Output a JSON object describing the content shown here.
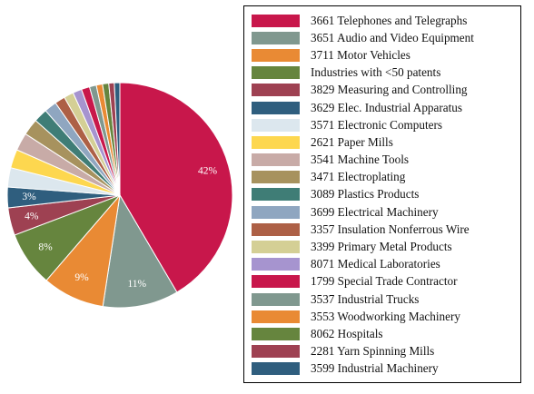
{
  "chart_data": {
    "type": "pie",
    "slices": [
      {
        "label": "3661 Telephones and Telegraphs",
        "value": 42,
        "color": "#c8174b",
        "value_label": "42%"
      },
      {
        "label": "3651 Audio and Video Equipment",
        "value": 11,
        "color": "#80988f",
        "value_label": "11%"
      },
      {
        "label": "3711 Motor Vehicles",
        "value": 9,
        "color": "#e98a34",
        "value_label": "9%"
      },
      {
        "label": "Industries with <50 patents",
        "value": 8,
        "color": "#66853e",
        "value_label": "8%"
      },
      {
        "label": "3829 Measuring and Controlling",
        "value": 4,
        "color": "#9e4152",
        "value_label": "4%"
      },
      {
        "label": "3629 Elec. Industrial Apparatus",
        "value": 3,
        "color": "#2f5e7e",
        "value_label": "3%"
      },
      {
        "label": "3571 Electronic Computers",
        "value": 2.8,
        "color": "#dce7ee",
        "value_label": ""
      },
      {
        "label": "2621 Paper Mills",
        "value": 2.7,
        "color": "#fdd74f",
        "value_label": ""
      },
      {
        "label": "3541 Machine Tools",
        "value": 2.6,
        "color": "#c8aba7",
        "value_label": ""
      },
      {
        "label": "3471 Electroplating",
        "value": 2.4,
        "color": "#a7925e",
        "value_label": ""
      },
      {
        "label": "3089 Plastics Products",
        "value": 2.0,
        "color": "#3f7d76",
        "value_label": ""
      },
      {
        "label": "3699 Electrical Machinery",
        "value": 1.8,
        "color": "#8fa6c0",
        "value_label": ""
      },
      {
        "label": "3357 Insulation Nonferrous Wire",
        "value": 1.5,
        "color": "#ad6046",
        "value_label": ""
      },
      {
        "label": "3399 Primary Metal Products",
        "value": 1.4,
        "color": "#d4cf95",
        "value_label": ""
      },
      {
        "label": "8071 Medical Laboratories",
        "value": 1.3,
        "color": "#a694cf",
        "value_label": ""
      },
      {
        "label": "1799 Special Trade Contractor",
        "value": 1.2,
        "color": "#c8174b",
        "value_label": ""
      },
      {
        "label": "3537 Industrial Trucks",
        "value": 1.0,
        "color": "#80988f",
        "value_label": ""
      },
      {
        "label": "3553 Woodworking Machinery",
        "value": 0.9,
        "color": "#e98a34",
        "value_label": ""
      },
      {
        "label": "8062 Hospitals",
        "value": 0.9,
        "color": "#66853e",
        "value_label": ""
      },
      {
        "label": "2281 Yarn Spinning Mills",
        "value": 0.8,
        "color": "#9e4152",
        "value_label": ""
      },
      {
        "label": "3599 Industrial Machinery",
        "value": 0.8,
        "color": "#2f5e7e",
        "value_label": ""
      }
    ],
    "legend_position": "right"
  }
}
